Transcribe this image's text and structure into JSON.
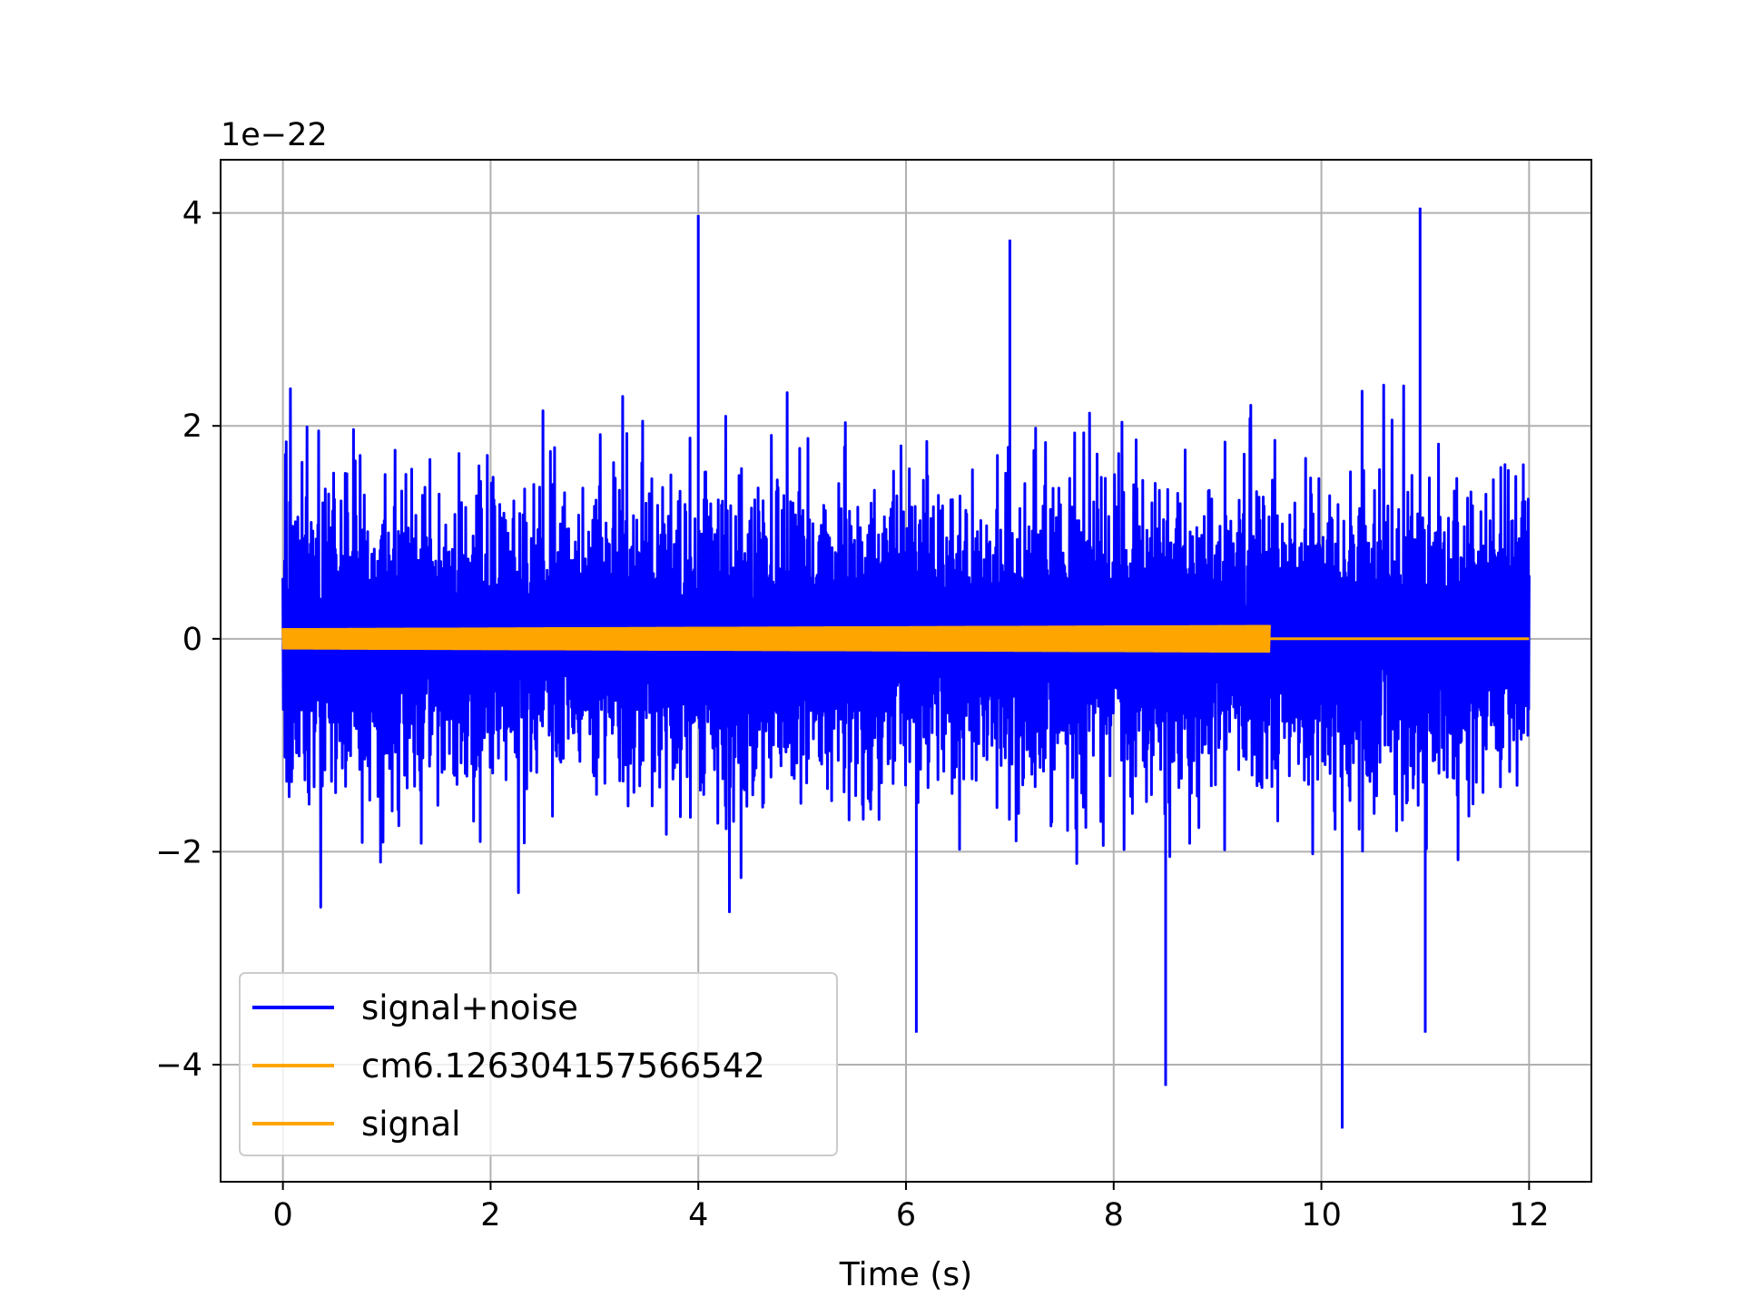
{
  "chart_data": {
    "type": "line",
    "title": "",
    "xlabel": "Time (s)",
    "ylabel": "",
    "y_offset_label": "1e−22",
    "y_scale_factor": 1e-22,
    "xlim": [
      -0.6,
      12.6
    ],
    "ylim": [
      -5.1,
      4.5
    ],
    "xticks": [
      0,
      2,
      4,
      6,
      8,
      10,
      12
    ],
    "xtick_labels": [
      "0",
      "2",
      "4",
      "6",
      "8",
      "10",
      "12"
    ],
    "yticks": [
      -4,
      -2,
      0,
      2,
      4
    ],
    "ytick_labels": [
      "−4",
      "−2",
      "0",
      "2",
      "4"
    ],
    "grid": true,
    "legend_position": "lower-left",
    "series": [
      {
        "name": "signal+noise",
        "color": "#0000ff",
        "x_range": [
          0,
          12
        ],
        "typical_amplitude": 1.6,
        "peak_max": 4.05,
        "peak_min": -4.6,
        "notable_peaks": [
          {
            "x": 4.0,
            "y": 3.98
          },
          {
            "x": 10.95,
            "y": 4.05
          },
          {
            "x": 7.0,
            "y": 3.75
          },
          {
            "x": 8.5,
            "y": -4.2
          },
          {
            "x": 10.2,
            "y": -4.6
          },
          {
            "x": 6.1,
            "y": -3.7
          },
          {
            "x": 11.0,
            "y": -3.7
          }
        ]
      },
      {
        "name": "cm6.126304157566542",
        "color": "#ffa500",
        "x_range": [
          0,
          9.5
        ],
        "amplitude_start": 0.1,
        "amplitude_end": 0.13
      },
      {
        "name": "signal",
        "color": "#ffa500",
        "x_range": [
          0,
          12
        ],
        "amplitude_start": 0.1,
        "amplitude_end": 0.13,
        "merger_time": 9.5,
        "post_merger_value": 0.0
      }
    ]
  }
}
